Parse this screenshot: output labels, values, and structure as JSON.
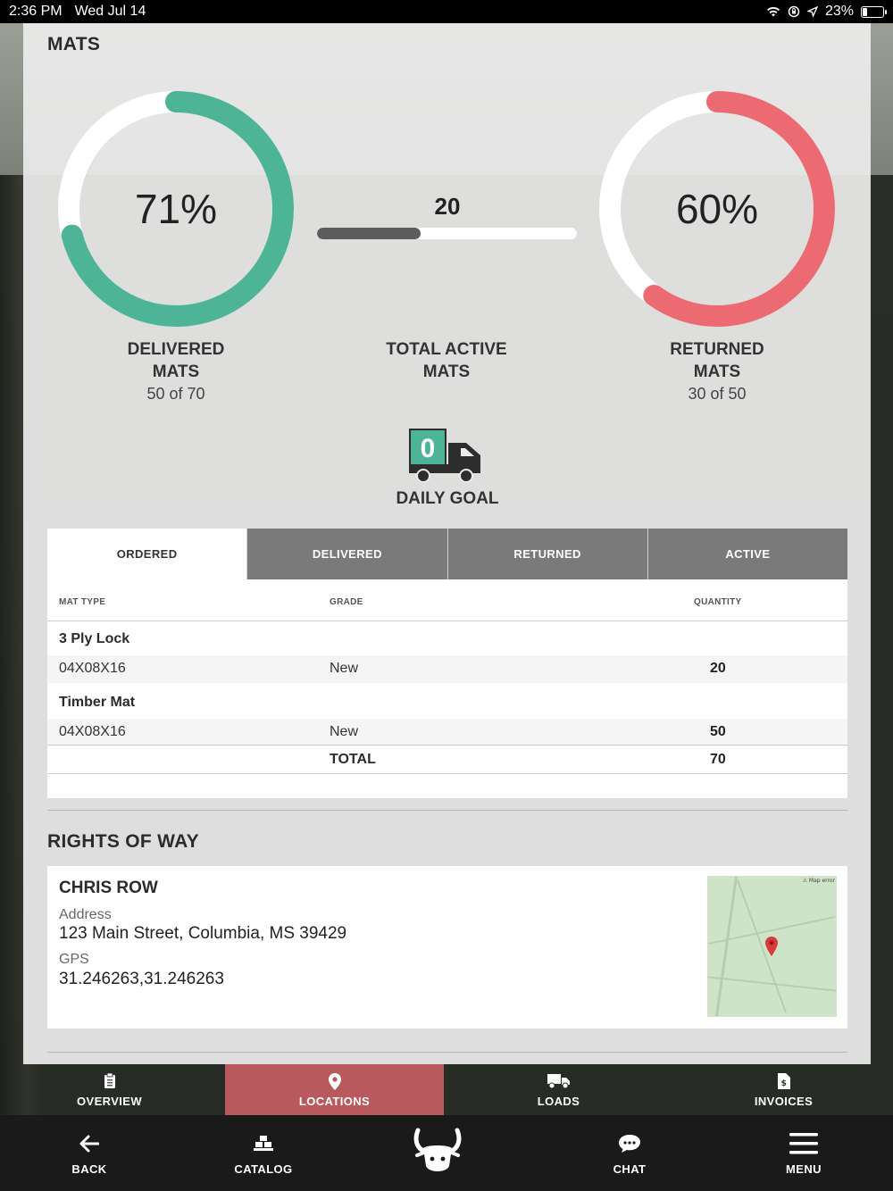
{
  "status_bar": {
    "time": "2:36 PM",
    "date": "Wed Jul 14",
    "battery": "23%"
  },
  "mats": {
    "title": "MATS",
    "delivered": {
      "percent_label": "71%",
      "fraction": 0.71,
      "label_line1": "DELIVERED",
      "label_line2": "MATS",
      "sub": "50 of 70",
      "color": "#4db596"
    },
    "total_active": {
      "count": "20",
      "label_line1": "TOTAL ACTIVE",
      "label_line2": "MATS",
      "fraction": 0.4
    },
    "returned": {
      "percent_label": "60%",
      "fraction": 0.6,
      "label_line1": "RETURNED",
      "label_line2": "MATS",
      "sub": "30 of 50",
      "color": "#ec6b73"
    },
    "daily_goal": {
      "count": "0",
      "label": "DAILY GOAL"
    }
  },
  "tabs": [
    "ORDERED",
    "DELIVERED",
    "RETURNED",
    "ACTIVE"
  ],
  "table": {
    "headers": {
      "mat_type": "MAT TYPE",
      "grade": "GRADE",
      "quantity": "QUANTITY"
    },
    "groups": [
      {
        "name": "3 Ply Lock",
        "rows": [
          {
            "size": "04X08X16",
            "grade": "New",
            "quantity": "20"
          }
        ]
      },
      {
        "name": "Timber Mat",
        "rows": [
          {
            "size": "04X08X16",
            "grade": "New",
            "quantity": "50"
          }
        ]
      }
    ],
    "total": {
      "label": "TOTAL",
      "quantity": "70"
    }
  },
  "rights_of_way": {
    "title": "RIGHTS OF WAY",
    "item": {
      "name": "CHRIS ROW",
      "address_label": "Address",
      "address": "123 Main Street, Columbia, MS 39429",
      "gps_label": "GPS",
      "gps": "31.246263,31.246263",
      "map_error": "Map error"
    }
  },
  "tabbar": [
    {
      "label": "OVERVIEW",
      "icon": "clipboard-icon"
    },
    {
      "label": "LOCATIONS",
      "icon": "map-pin-icon"
    },
    {
      "label": "LOADS",
      "icon": "truck-icon"
    },
    {
      "label": "INVOICES",
      "icon": "invoice-icon"
    }
  ],
  "footer": {
    "back": "BACK",
    "catalog": "CATALOG",
    "chat": "CHAT",
    "menu": "MENU"
  },
  "colors": {
    "accent_green": "#4db596",
    "accent_red": "#ec6b73",
    "selected_tab": "#b9595e"
  }
}
